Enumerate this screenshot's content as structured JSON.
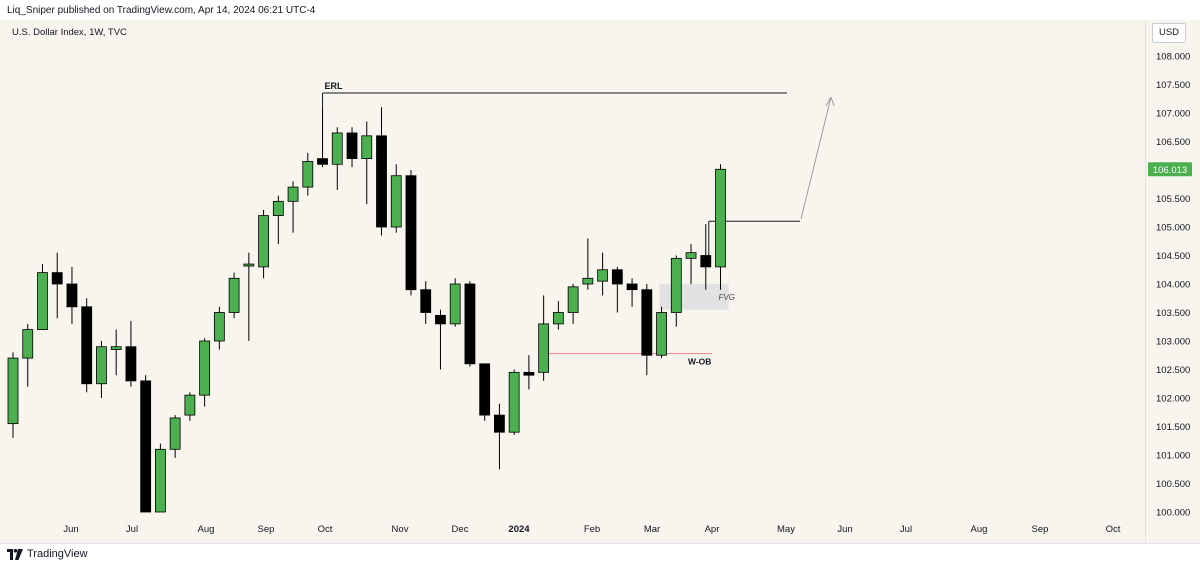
{
  "header": {
    "published_by": "Liq_Sniper published on TradingView.com, Apr 14, 2024 06:21 UTC-4"
  },
  "chart_header": {
    "symbol": "U.S. Dollar Index, 1W, TVC",
    "currency": "USD"
  },
  "footer": {
    "logo_icon": "tradingview-logo-icon",
    "brand": "TradingView"
  },
  "colors": {
    "background": "#f8f5ee",
    "bull": "#4caf50",
    "bear": "#000000",
    "wick": "#000000",
    "price_label": "#4caf50",
    "w_ob_line": "#f08a96",
    "fvg_box": "#e2e2e2",
    "arrow": "#9e9e9e"
  },
  "chart_data": {
    "type": "candlestick",
    "title": "U.S. Dollar Index, 1W, TVC",
    "ylim": [
      99.9,
      108.65
    ],
    "y_ticks": [
      "100.000",
      "100.500",
      "101.000",
      "101.500",
      "102.000",
      "102.500",
      "103.000",
      "103.500",
      "104.000",
      "104.500",
      "105.000",
      "105.500",
      "106.000",
      "106.500",
      "107.000",
      "107.500",
      "108.000"
    ],
    "x_ticks": [
      "Jun",
      "Jul",
      "Aug",
      "Sep",
      "Oct",
      "Nov",
      "Dec",
      "2024",
      "Feb",
      "Mar",
      "Apr",
      "May",
      "Jun",
      "Jul",
      "Aug",
      "Sep",
      "Oct"
    ],
    "last_price": "106.013",
    "candles": [
      {
        "o": 101.55,
        "h": 102.8,
        "l": 101.3,
        "c": 102.7
      },
      {
        "o": 102.7,
        "h": 103.3,
        "l": 102.2,
        "c": 103.2
      },
      {
        "o": 103.2,
        "h": 104.35,
        "l": 103.2,
        "c": 104.2
      },
      {
        "o": 104.2,
        "h": 104.55,
        "l": 103.4,
        "c": 104.0
      },
      {
        "o": 104.0,
        "h": 104.3,
        "l": 103.3,
        "c": 103.6
      },
      {
        "o": 103.6,
        "h": 103.75,
        "l": 102.1,
        "c": 102.25
      },
      {
        "o": 102.25,
        "h": 103.0,
        "l": 102.0,
        "c": 102.9
      },
      {
        "o": 102.85,
        "h": 103.2,
        "l": 102.4,
        "c": 102.9
      },
      {
        "o": 102.9,
        "h": 103.35,
        "l": 102.2,
        "c": 102.3
      },
      {
        "o": 102.3,
        "h": 102.4,
        "l": 100.0,
        "c": 100.0
      },
      {
        "o": 100.0,
        "h": 101.2,
        "l": 100.0,
        "c": 101.1
      },
      {
        "o": 101.1,
        "h": 101.7,
        "l": 100.95,
        "c": 101.65
      },
      {
        "o": 101.7,
        "h": 102.1,
        "l": 101.6,
        "c": 102.05
      },
      {
        "o": 102.05,
        "h": 103.05,
        "l": 101.85,
        "c": 103.0
      },
      {
        "o": 103.0,
        "h": 103.6,
        "l": 102.85,
        "c": 103.5
      },
      {
        "o": 103.5,
        "h": 104.2,
        "l": 103.4,
        "c": 104.1
      },
      {
        "o": 104.35,
        "h": 104.55,
        "l": 103.0,
        "c": 104.35
      },
      {
        "o": 104.3,
        "h": 105.3,
        "l": 104.1,
        "c": 105.2
      },
      {
        "o": 105.2,
        "h": 105.55,
        "l": 104.7,
        "c": 105.45
      },
      {
        "o": 105.45,
        "h": 105.8,
        "l": 104.9,
        "c": 105.7
      },
      {
        "o": 105.7,
        "h": 106.3,
        "l": 105.55,
        "c": 106.15
      },
      {
        "o": 106.2,
        "h": 107.1,
        "l": 106.05,
        "c": 106.1
      },
      {
        "o": 106.1,
        "h": 106.75,
        "l": 105.65,
        "c": 106.65
      },
      {
        "o": 106.65,
        "h": 106.75,
        "l": 106.05,
        "c": 106.2
      },
      {
        "o": 106.2,
        "h": 106.85,
        "l": 105.4,
        "c": 106.6
      },
      {
        "o": 106.6,
        "h": 107.1,
        "l": 104.85,
        "c": 105.0
      },
      {
        "o": 105.0,
        "h": 106.1,
        "l": 104.9,
        "c": 105.9
      },
      {
        "o": 105.9,
        "h": 106.0,
        "l": 103.8,
        "c": 103.9
      },
      {
        "o": 103.9,
        "h": 104.05,
        "l": 103.3,
        "c": 103.5
      },
      {
        "o": 103.45,
        "h": 103.55,
        "l": 102.5,
        "c": 103.3
      },
      {
        "o": 103.3,
        "h": 104.1,
        "l": 103.25,
        "c": 104.0
      },
      {
        "o": 104.0,
        "h": 104.05,
        "l": 102.55,
        "c": 102.6
      },
      {
        "o": 102.6,
        "h": 102.6,
        "l": 101.6,
        "c": 101.7
      },
      {
        "o": 101.7,
        "h": 101.9,
        "l": 100.75,
        "c": 101.4
      },
      {
        "o": 101.4,
        "h": 102.5,
        "l": 101.35,
        "c": 102.45
      },
      {
        "o": 102.45,
        "h": 102.75,
        "l": 102.15,
        "c": 102.4
      },
      {
        "o": 102.45,
        "h": 103.8,
        "l": 102.3,
        "c": 103.3
      },
      {
        "o": 103.3,
        "h": 103.7,
        "l": 103.2,
        "c": 103.5
      },
      {
        "o": 103.5,
        "h": 104.0,
        "l": 103.3,
        "c": 103.95
      },
      {
        "o": 104.0,
        "h": 104.8,
        "l": 103.9,
        "c": 104.1
      },
      {
        "o": 104.05,
        "h": 104.55,
        "l": 103.8,
        "c": 104.25
      },
      {
        "o": 104.25,
        "h": 104.3,
        "l": 103.5,
        "c": 104.0
      },
      {
        "o": 104.0,
        "h": 104.1,
        "l": 103.6,
        "c": 103.9
      },
      {
        "o": 103.9,
        "h": 104.0,
        "l": 102.4,
        "c": 102.75
      },
      {
        "o": 102.75,
        "h": 103.6,
        "l": 102.7,
        "c": 103.5
      },
      {
        "o": 103.5,
        "h": 104.5,
        "l": 103.25,
        "c": 104.45
      },
      {
        "o": 104.45,
        "h": 104.7,
        "l": 104.0,
        "c": 104.55
      },
      {
        "o": 104.5,
        "h": 105.05,
        "l": 103.9,
        "c": 104.3
      },
      {
        "o": 104.3,
        "h": 106.1,
        "l": 103.9,
        "c": 106.013
      }
    ],
    "annotations": [
      {
        "label": "ERL",
        "price": 107.35
      },
      {
        "label": "W-OB",
        "price": 102.78
      },
      {
        "label": "FVG",
        "price_top": 104.0,
        "price_bottom": 103.55
      },
      {
        "label": "",
        "price": 105.1
      },
      {
        "label": "",
        "type": "arrow"
      }
    ]
  }
}
